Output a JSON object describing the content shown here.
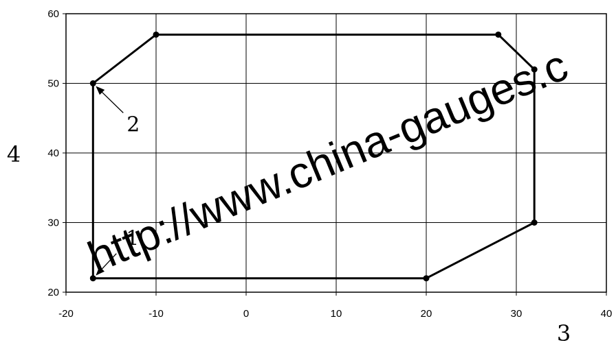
{
  "chart_data": {
    "type": "line",
    "title": "",
    "xlabel": "3",
    "ylabel": "4",
    "xlim": [
      -20,
      40
    ],
    "ylim": [
      20,
      60
    ],
    "x_ticks": [
      -20,
      -10,
      0,
      10,
      20,
      30,
      40
    ],
    "y_ticks": [
      20,
      30,
      40,
      50,
      60
    ],
    "x_tick_labels": [
      "-20",
      "-10",
      "0",
      "10",
      "20",
      "30",
      "40"
    ],
    "y_tick_labels": [
      "20",
      "30",
      "40",
      "50",
      "60"
    ],
    "grid": true,
    "series": [
      {
        "closed": true,
        "x": [
          -17,
          -10,
          28,
          32,
          32,
          20,
          -17
        ],
        "y": [
          50,
          57,
          57,
          52,
          30,
          22,
          22
        ]
      }
    ],
    "annotations": [
      {
        "text": "2",
        "x": -17,
        "y": 50
      },
      {
        "text": "1",
        "x": -17,
        "y": 22
      }
    ]
  },
  "watermark": "http://www.china-gauges.c"
}
